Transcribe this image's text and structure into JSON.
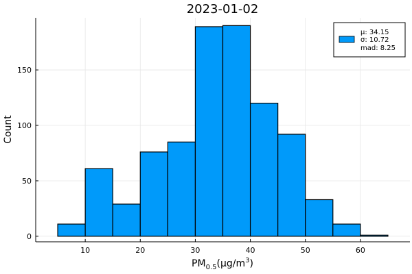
{
  "chart_data": {
    "type": "bar",
    "title": "2023-01-02",
    "xlabel": "PM",
    "xlabel_sub": "0.5",
    "xlabel_units": "(μg/m",
    "xlabel_sup": "3",
    "xlabel_close": ")",
    "ylabel": "Count",
    "xlim": [
      1,
      69
    ],
    "ylim": [
      -5,
      197
    ],
    "xticks": [
      10,
      20,
      30,
      40,
      50,
      60
    ],
    "yticks": [
      0,
      50,
      100,
      150
    ],
    "grid": true,
    "legend_position": "top-right",
    "bar_color": "#009AFA",
    "bins": [
      {
        "x0": 5,
        "x1": 10,
        "count": 11
      },
      {
        "x0": 10,
        "x1": 15,
        "count": 61
      },
      {
        "x0": 15,
        "x1": 20,
        "count": 29
      },
      {
        "x0": 20,
        "x1": 25,
        "count": 76
      },
      {
        "x0": 25,
        "x1": 30,
        "count": 85
      },
      {
        "x0": 30,
        "x1": 35,
        "count": 189
      },
      {
        "x0": 35,
        "x1": 40,
        "count": 190
      },
      {
        "x0": 40,
        "x1": 45,
        "count": 120
      },
      {
        "x0": 45,
        "x1": 50,
        "count": 92
      },
      {
        "x0": 50,
        "x1": 55,
        "count": 33
      },
      {
        "x0": 55,
        "x1": 60,
        "count": 11
      },
      {
        "x0": 60,
        "x1": 65,
        "count": 1
      }
    ],
    "legend_lines": [
      "μ: 34.15",
      "σ: 10.72",
      "mad: 8.25"
    ]
  }
}
